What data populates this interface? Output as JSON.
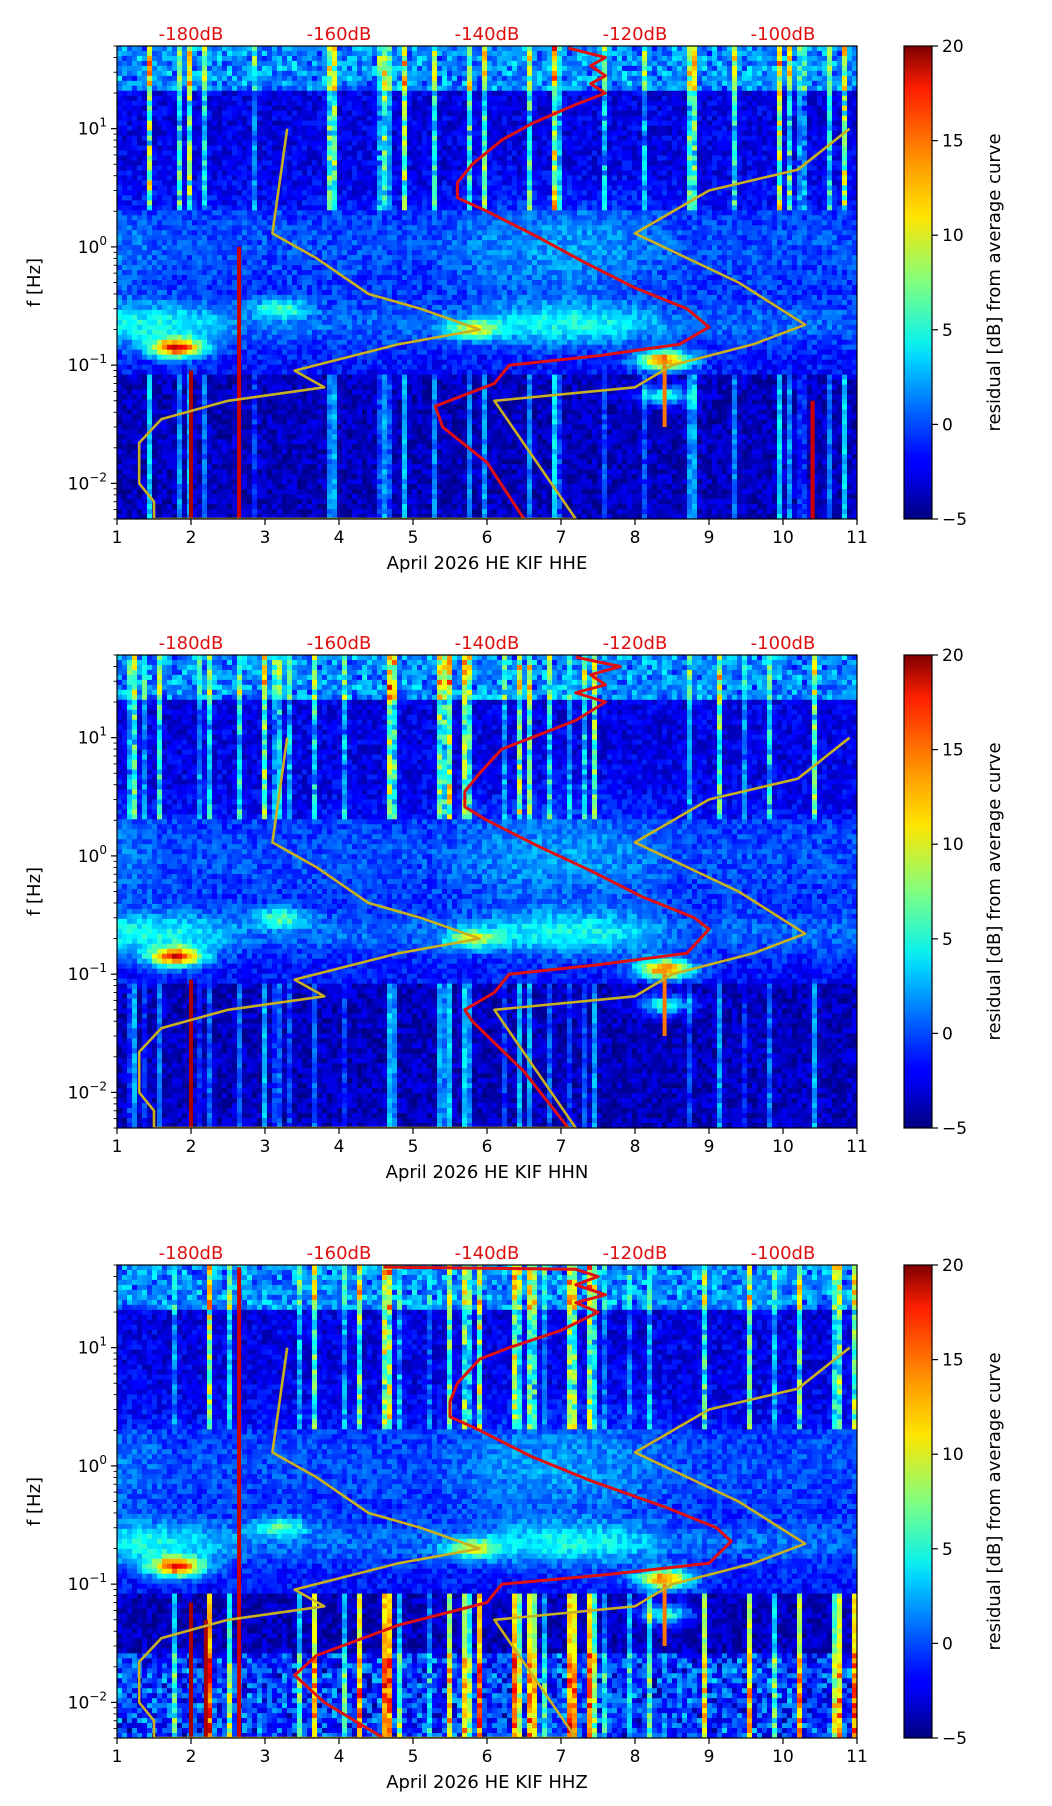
{
  "chart_data": [
    {
      "type": "heatmap",
      "xlabel": "April 2026 HE KIF  HHE",
      "ylabel": "f [Hz]",
      "xlim": [
        1,
        11
      ],
      "ylim": [
        0.005,
        50
      ],
      "yscale": "log",
      "xticks": [
        "1",
        "2",
        "3",
        "4",
        "5",
        "6",
        "7",
        "8",
        "9",
        "10",
        "11"
      ],
      "yticks": [
        {
          "v": 0.01,
          "base": "10",
          "exp": "−2"
        },
        {
          "v": 0.1,
          "base": "10",
          "exp": "−1"
        },
        {
          "v": 1,
          "base": "10",
          "exp": "0"
        },
        {
          "v": 10,
          "base": "10",
          "exp": "1"
        }
      ],
      "top_labels": [
        {
          "x": 2,
          "text": "-180dB"
        },
        {
          "x": 4,
          "text": "-160dB"
        },
        {
          "x": 6,
          "text": "-140dB"
        },
        {
          "x": 8,
          "text": "-120dB"
        },
        {
          "x": 10,
          "text": "-100dB"
        }
      ],
      "colorbar": {
        "label": "residual [dB] from average curve",
        "min": -5,
        "max": 20,
        "ticks": [
          "−5",
          "0",
          "5",
          "10",
          "15",
          "20"
        ]
      },
      "series": [
        {
          "name": "average PSD",
          "color": "#e01010",
          "points": [
            [
              7.1,
              48
            ],
            [
              7.6,
              40
            ],
            [
              7.4,
              34
            ],
            [
              7.6,
              28
            ],
            [
              7.4,
              24
            ],
            [
              7.6,
              20
            ],
            [
              7.2,
              16
            ],
            [
              6.6,
              11
            ],
            [
              6.2,
              8
            ],
            [
              5.8,
              5
            ],
            [
              5.6,
              3.5
            ],
            [
              5.6,
              2.6
            ],
            [
              6.0,
              2
            ],
            [
              6.7,
              1.2
            ],
            [
              7.3,
              0.75
            ],
            [
              8.0,
              0.45
            ],
            [
              8.7,
              0.3
            ],
            [
              9.0,
              0.21
            ],
            [
              8.6,
              0.15
            ],
            [
              7.5,
              0.12
            ],
            [
              6.3,
              0.1
            ],
            [
              6.1,
              0.07
            ],
            [
              5.3,
              0.045
            ],
            [
              5.4,
              0.03
            ],
            [
              6.0,
              0.015
            ],
            [
              6.5,
              0.005
            ]
          ]
        },
        {
          "name": "noise model",
          "color": "#c8b020",
          "points": [
            [
              3.3,
              10
            ],
            [
              3.1,
              1.3
            ],
            [
              3.7,
              0.8
            ],
            [
              4.4,
              0.4
            ],
            [
              5.1,
              0.3
            ],
            [
              5.9,
              0.2
            ],
            [
              4.8,
              0.15
            ],
            [
              3.4,
              0.09
            ],
            [
              3.8,
              0.065
            ],
            [
              2.5,
              0.05
            ],
            [
              1.6,
              0.035
            ],
            [
              1.3,
              0.022
            ],
            [
              1.3,
              0.01
            ],
            [
              1.5,
              0.007
            ],
            [
              1.5,
              0.005
            ],
            [
              7.2,
              0.005
            ],
            [
              6.1,
              0.05
            ],
            [
              8.0,
              0.065
            ],
            [
              8.5,
              0.1
            ],
            [
              9.6,
              0.15
            ],
            [
              10.3,
              0.22
            ],
            [
              9.4,
              0.5
            ],
            [
              8.0,
              1.3
            ],
            [
              9.0,
              3
            ],
            [
              10.2,
              4.5
            ],
            [
              10.9,
              10
            ]
          ]
        }
      ],
      "hotspots": [
        {
          "x": 1.8,
          "f": 0.14,
          "level": 17
        },
        {
          "x": 8.4,
          "f": 0.11,
          "level": 16
        },
        {
          "x": 8.4,
          "f": 0.055,
          "level": 9
        },
        {
          "x": 5.8,
          "f": 0.2,
          "level": 9
        },
        {
          "x": 3.2,
          "f": 0.3,
          "level": 7
        }
      ],
      "vertical_lines": [
        {
          "x": 2.0,
          "fmin": 0.005,
          "fmax": 0.09,
          "level": 19
        },
        {
          "x": 2.65,
          "fmin": 0.005,
          "fmax": 1.0,
          "level": 18
        },
        {
          "x": 8.4,
          "fmin": 0.03,
          "fmax": 0.1,
          "level": 14
        },
        {
          "x": 10.4,
          "fmin": 0.005,
          "fmax": 0.05,
          "level": 18
        }
      ],
      "strong_low_band": false
    },
    {
      "type": "heatmap",
      "xlabel": "April 2026 HE KIF  HHN",
      "ylabel": "f [Hz]",
      "xlim": [
        1,
        11
      ],
      "ylim": [
        0.005,
        50
      ],
      "yscale": "log",
      "xticks": [
        "1",
        "2",
        "3",
        "4",
        "5",
        "6",
        "7",
        "8",
        "9",
        "10",
        "11"
      ],
      "yticks": [
        {
          "v": 0.01,
          "base": "10",
          "exp": "−2"
        },
        {
          "v": 0.1,
          "base": "10",
          "exp": "−1"
        },
        {
          "v": 1,
          "base": "10",
          "exp": "0"
        },
        {
          "v": 10,
          "base": "10",
          "exp": "1"
        }
      ],
      "top_labels": [
        {
          "x": 2,
          "text": "-180dB"
        },
        {
          "x": 4,
          "text": "-160dB"
        },
        {
          "x": 6,
          "text": "-140dB"
        },
        {
          "x": 8,
          "text": "-120dB"
        },
        {
          "x": 10,
          "text": "-100dB"
        }
      ],
      "colorbar": {
        "label": "residual [dB] from average curve",
        "min": -5,
        "max": 20,
        "ticks": [
          "−5",
          "0",
          "5",
          "10",
          "15",
          "20"
        ]
      },
      "series": [
        {
          "name": "average PSD",
          "color": "#e01010",
          "points": [
            [
              7.2,
              48
            ],
            [
              7.8,
              40
            ],
            [
              7.4,
              34
            ],
            [
              7.6,
              28
            ],
            [
              7.2,
              24
            ],
            [
              7.6,
              20
            ],
            [
              7.2,
              14
            ],
            [
              6.6,
              10
            ],
            [
              6.2,
              8
            ],
            [
              5.9,
              5
            ],
            [
              5.7,
              3.5
            ],
            [
              5.7,
              2.6
            ],
            [
              6.0,
              2
            ],
            [
              6.7,
              1.2
            ],
            [
              7.4,
              0.75
            ],
            [
              8.1,
              0.45
            ],
            [
              8.8,
              0.3
            ],
            [
              9.0,
              0.24
            ],
            [
              8.7,
              0.15
            ],
            [
              7.5,
              0.12
            ],
            [
              6.3,
              0.1
            ],
            [
              6.1,
              0.07
            ],
            [
              5.7,
              0.05
            ],
            [
              5.8,
              0.04
            ],
            [
              6.5,
              0.015
            ],
            [
              7.1,
              0.005
            ]
          ]
        },
        {
          "name": "noise model",
          "color": "#c8b020",
          "points": [
            [
              3.3,
              10
            ],
            [
              3.1,
              1.3
            ],
            [
              3.7,
              0.8
            ],
            [
              4.4,
              0.4
            ],
            [
              5.1,
              0.3
            ],
            [
              5.9,
              0.2
            ],
            [
              4.8,
              0.15
            ],
            [
              3.4,
              0.09
            ],
            [
              3.8,
              0.065
            ],
            [
              2.5,
              0.05
            ],
            [
              1.6,
              0.035
            ],
            [
              1.3,
              0.022
            ],
            [
              1.3,
              0.01
            ],
            [
              1.5,
              0.007
            ],
            [
              1.5,
              0.005
            ],
            [
              7.2,
              0.005
            ],
            [
              6.1,
              0.05
            ],
            [
              8.0,
              0.065
            ],
            [
              8.5,
              0.1
            ],
            [
              9.6,
              0.15
            ],
            [
              10.3,
              0.22
            ],
            [
              9.4,
              0.5
            ],
            [
              8.0,
              1.3
            ],
            [
              9.0,
              3
            ],
            [
              10.2,
              4.5
            ],
            [
              10.9,
              10
            ]
          ]
        }
      ],
      "hotspots": [
        {
          "x": 1.8,
          "f": 0.14,
          "level": 17
        },
        {
          "x": 8.4,
          "f": 0.11,
          "level": 16
        },
        {
          "x": 8.4,
          "f": 0.055,
          "level": 9
        },
        {
          "x": 5.8,
          "f": 0.2,
          "level": 9
        },
        {
          "x": 3.2,
          "f": 0.3,
          "level": 7
        }
      ],
      "vertical_lines": [
        {
          "x": 2.0,
          "fmin": 0.005,
          "fmax": 0.09,
          "level": 19
        },
        {
          "x": 8.4,
          "fmin": 0.03,
          "fmax": 0.1,
          "level": 14
        }
      ],
      "strong_low_band": false
    },
    {
      "type": "heatmap",
      "xlabel": "April 2026 HE KIF  HHZ",
      "ylabel": "f [Hz]",
      "xlim": [
        1,
        11
      ],
      "ylim": [
        0.005,
        50
      ],
      "yscale": "log",
      "xticks": [
        "1",
        "2",
        "3",
        "4",
        "5",
        "6",
        "7",
        "8",
        "9",
        "10",
        "11"
      ],
      "yticks": [
        {
          "v": 0.01,
          "base": "10",
          "exp": "−2"
        },
        {
          "v": 0.1,
          "base": "10",
          "exp": "−1"
        },
        {
          "v": 1,
          "base": "10",
          "exp": "0"
        },
        {
          "v": 10,
          "base": "10",
          "exp": "1"
        }
      ],
      "top_labels": [
        {
          "x": 2,
          "text": "-180dB"
        },
        {
          "x": 4,
          "text": "-160dB"
        },
        {
          "x": 6,
          "text": "-140dB"
        },
        {
          "x": 8,
          "text": "-120dB"
        },
        {
          "x": 10,
          "text": "-100dB"
        }
      ],
      "colorbar": {
        "label": "residual [dB] from average curve",
        "min": -5,
        "max": 20,
        "ticks": [
          "−5",
          "0",
          "5",
          "10",
          "15",
          "20"
        ]
      },
      "series": [
        {
          "name": "average PSD",
          "color": "#e01010",
          "points": [
            [
              4.6,
              48
            ],
            [
              7.2,
              46
            ],
            [
              7.5,
              40
            ],
            [
              7.2,
              34
            ],
            [
              7.6,
              28
            ],
            [
              7.2,
              24
            ],
            [
              7.5,
              20
            ],
            [
              7.0,
              14
            ],
            [
              6.3,
              10
            ],
            [
              5.9,
              8
            ],
            [
              5.6,
              5
            ],
            [
              5.5,
              3.5
            ],
            [
              5.5,
              2.6
            ],
            [
              5.9,
              2
            ],
            [
              6.6,
              1.2
            ],
            [
              7.4,
              0.75
            ],
            [
              8.4,
              0.45
            ],
            [
              9.1,
              0.3
            ],
            [
              9.3,
              0.23
            ],
            [
              9.0,
              0.15
            ],
            [
              7.6,
              0.12
            ],
            [
              6.2,
              0.1
            ],
            [
              6.0,
              0.07
            ],
            [
              4.8,
              0.045
            ],
            [
              3.7,
              0.025
            ],
            [
              3.4,
              0.017
            ],
            [
              3.8,
              0.01
            ],
            [
              4.6,
              0.005
            ]
          ]
        },
        {
          "name": "noise model",
          "color": "#c8b020",
          "points": [
            [
              3.3,
              10
            ],
            [
              3.1,
              1.3
            ],
            [
              3.7,
              0.8
            ],
            [
              4.4,
              0.4
            ],
            [
              5.1,
              0.3
            ],
            [
              5.9,
              0.2
            ],
            [
              4.8,
              0.15
            ],
            [
              3.4,
              0.09
            ],
            [
              3.8,
              0.065
            ],
            [
              2.5,
              0.05
            ],
            [
              1.6,
              0.035
            ],
            [
              1.3,
              0.022
            ],
            [
              1.3,
              0.01
            ],
            [
              1.5,
              0.007
            ],
            [
              1.5,
              0.005
            ],
            [
              7.2,
              0.005
            ],
            [
              6.1,
              0.05
            ],
            [
              8.0,
              0.065
            ],
            [
              8.5,
              0.1
            ],
            [
              9.6,
              0.15
            ],
            [
              10.3,
              0.22
            ],
            [
              9.4,
              0.5
            ],
            [
              8.0,
              1.3
            ],
            [
              9.0,
              3
            ],
            [
              10.2,
              4.5
            ],
            [
              10.9,
              10
            ]
          ]
        }
      ],
      "hotspots": [
        {
          "x": 1.8,
          "f": 0.14,
          "level": 17
        },
        {
          "x": 8.4,
          "f": 0.11,
          "level": 16
        },
        {
          "x": 8.4,
          "f": 0.055,
          "level": 9
        },
        {
          "x": 5.8,
          "f": 0.2,
          "level": 9
        },
        {
          "x": 3.2,
          "f": 0.3,
          "level": 7
        }
      ],
      "vertical_lines": [
        {
          "x": 2.0,
          "fmin": 0.005,
          "fmax": 0.07,
          "level": 19
        },
        {
          "x": 2.2,
          "fmin": 0.005,
          "fmax": 0.05,
          "level": 19
        },
        {
          "x": 2.65,
          "fmin": 0.005,
          "fmax": 48,
          "level": 18
        },
        {
          "x": 8.4,
          "fmin": 0.03,
          "fmax": 0.1,
          "level": 14
        }
      ],
      "strong_low_band": true
    }
  ]
}
